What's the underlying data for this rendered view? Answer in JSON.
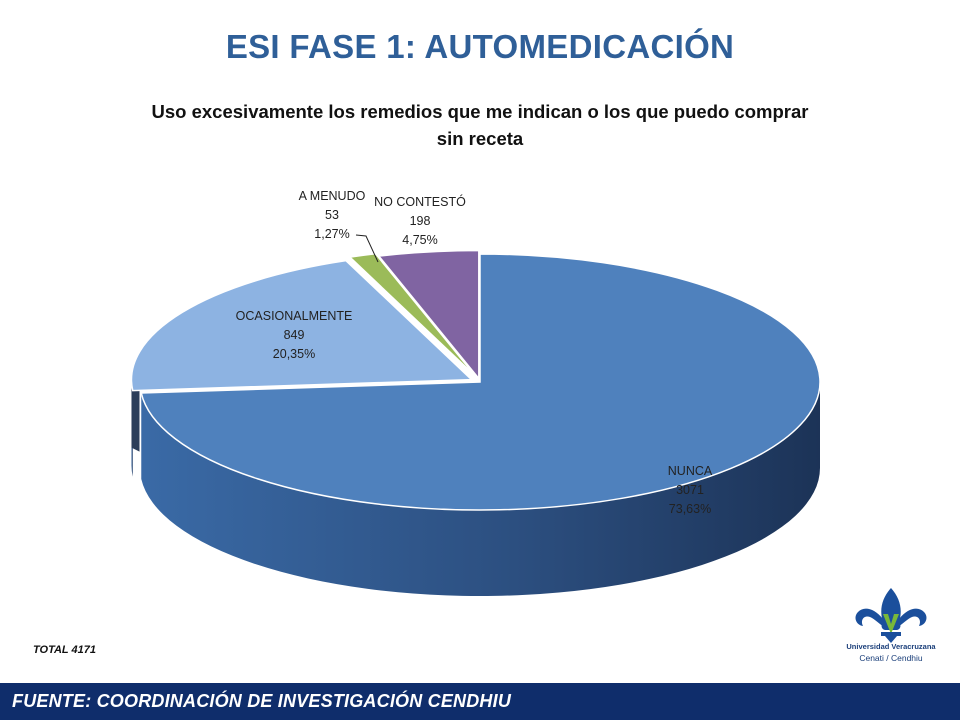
{
  "slide": {
    "title": "ESI  FASE 1: AUTOMEDICACIÓN",
    "total_label": "TOTAL 4171",
    "footer": "FUENTE: COORDINACIÓN DE   INVESTIGACIÓN CENDHIU",
    "logo": {
      "name": "Universidad Veracruzana",
      "unit": "Cenati / Cendhiu",
      "icon": "fleur-de-lis-icon",
      "colors": [
        "#1b4f9c",
        "#78b83a"
      ]
    }
  },
  "chart_data": {
    "type": "pie",
    "style": "3d-exploded",
    "title": "Uso excesivamente los remedios que me indican o los que puedo comprar sin receta",
    "slices": [
      {
        "label": "NUNCA",
        "value": 3071,
        "percent": "73,63%",
        "color": "#4f81bd"
      },
      {
        "label": "OCASIONALMENTE",
        "value": 849,
        "percent": "20,35%",
        "color": "#8db3e2"
      },
      {
        "label": "A  MENUDO",
        "value": 53,
        "percent": "1,27%",
        "color": "#9bbb59"
      },
      {
        "label": "NO CONTESTÓ",
        "value": 198,
        "percent": "4,75%",
        "color": "#8064a2"
      }
    ],
    "total": 4171
  }
}
